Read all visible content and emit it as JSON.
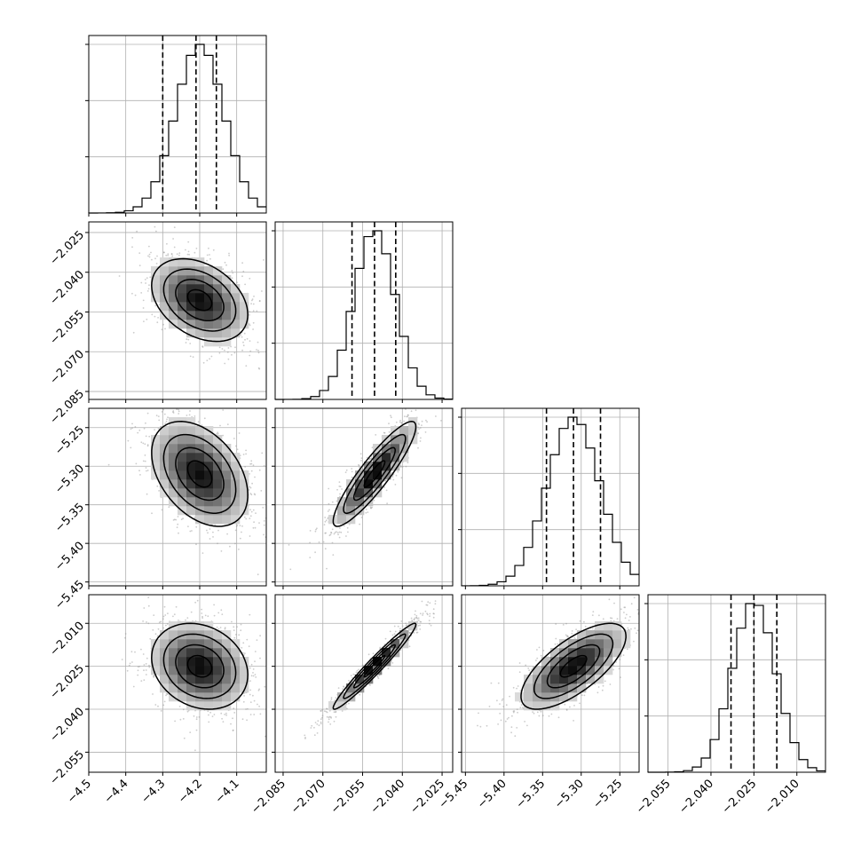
{
  "chart_data": {
    "type": "corner",
    "title": "",
    "grid": true,
    "n_params": 4,
    "params": [
      {
        "xticks": [
          -4.5,
          -4.4,
          -4.3,
          -4.2,
          -4.1
        ],
        "range": [
          -4.5,
          -4.02
        ],
        "mean": -4.2,
        "sd": 0.065,
        "quantiles": [
          -4.3,
          -4.21,
          -4.155
        ]
      },
      {
        "xticks": [
          -2.085,
          -2.07,
          -2.055,
          -2.04,
          -2.025
        ],
        "range": [
          -2.088,
          -2.021
        ],
        "mean": -2.0505,
        "sd": 0.0078,
        "quantiles": [
          -2.059,
          -2.0505,
          -2.0425
        ]
      },
      {
        "xticks": [
          -5.45,
          -5.4,
          -5.35,
          -5.3,
          -5.25
        ],
        "range": [
          -5.455,
          -5.225
        ],
        "mean": -5.31,
        "sd": 0.034,
        "quantiles": [
          -5.345,
          -5.31,
          -5.275
        ]
      },
      {
        "xticks": [
          -2.055,
          -2.04,
          -2.025,
          -2.01
        ],
        "range": [
          -2.062,
          -2.0
        ],
        "mean": -2.025,
        "sd": 0.0075,
        "quantiles": [
          -2.033,
          -2.025,
          -2.017
        ]
      }
    ],
    "row_yticks": {
      "1": [
        -2.025,
        -2.04,
        -2.055,
        -2.07,
        -2.085
      ],
      "2": [
        -5.25,
        -5.3,
        -5.35,
        -5.4,
        -5.45
      ],
      "3": [
        -2.01,
        -2.025,
        -2.04,
        -2.055
      ]
    },
    "hist_yticks_count": 3,
    "x_tick_labels": {
      "0": [
        "−4.5",
        "−4.4",
        "−4.3",
        "−4.2",
        "−4.1"
      ],
      "1": [
        "−2.085",
        "−2.070",
        "−2.055",
        "−2.040",
        "−2.025"
      ],
      "2": [
        "−5.45",
        "−5.40",
        "−5.35",
        "−5.30",
        "−5.25"
      ],
      "3": [
        "−2.055",
        "−2.040",
        "−2.025",
        "−2.010"
      ]
    },
    "y_tick_labels": {
      "1": [
        "−2.025",
        "−2.040",
        "−2.055",
        "−2.070",
        "−2.085"
      ],
      "2": [
        "−5.25",
        "−5.30",
        "−5.35",
        "−5.40",
        "−5.45"
      ],
      "3": [
        "−2.010",
        "−2.025",
        "−2.040",
        "−2.055"
      ]
    },
    "correlations": {
      "1_0": -0.35,
      "2_0": -0.4,
      "2_1": 0.9,
      "3_0": -0.2,
      "3_1": 0.97,
      "3_2": 0.7
    },
    "colors": {
      "points": "#9a9a9a",
      "lines": "#000000",
      "grid": "#b0b0b0"
    }
  }
}
